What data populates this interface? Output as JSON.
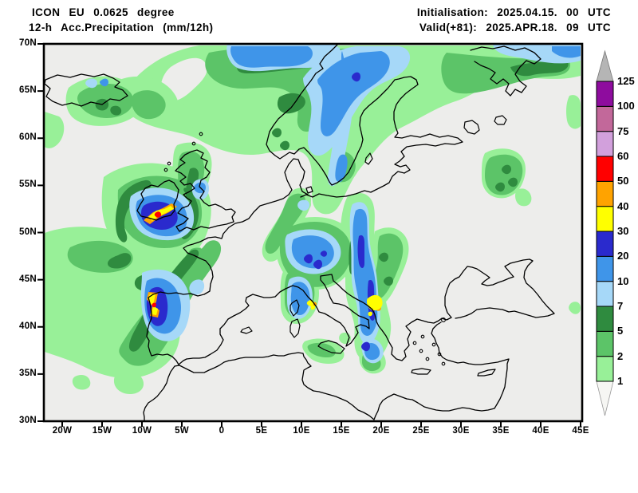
{
  "header": {
    "title_line1": "ICON EU 0.0625 degree",
    "title_line2": "12-h Acc.Precipitation (mm/12h)",
    "init_line": "Initialisation: 2025.04.15. 00 UTC",
    "valid_line": "Valid(+81): 2025.APR.18. 09 UTC"
  },
  "map": {
    "lat_labels": [
      "70N",
      "65N",
      "60N",
      "55N",
      "50N",
      "45N",
      "40N",
      "35N",
      "30N"
    ],
    "lon_labels": [
      "20W",
      "15W",
      "10W",
      "5W",
      "0",
      "5E",
      "10E",
      "15E",
      "20E",
      "25E",
      "30E",
      "35E",
      "40E",
      "45E"
    ],
    "background": "#ededeb",
    "coast_color": "#000000"
  },
  "colorbar": {
    "levels_bottom_to_top": [
      "1",
      "2",
      "5",
      "7",
      "10",
      "20",
      "30",
      "40",
      "50",
      "60",
      "75",
      "100",
      "125"
    ],
    "block_colors_bottom_to_top": [
      "#98F098",
      "#5CC468",
      "#2F8B3F",
      "#A6D8F8",
      "#3F95E9",
      "#2A2ACD",
      "#FFFF00",
      "#FFA300",
      "#FF0000",
      "#D2A0DC",
      "#C2689A",
      "#8E0C9E"
    ],
    "over_color": "#B5B5B5",
    "under_color": "#F6F6F3"
  },
  "palette": {
    "light_green": "#98F098",
    "med_green": "#5CC468",
    "dark_green": "#2F8B3F",
    "pale_blue": "#A6D8F8",
    "med_blue": "#3F95E9",
    "dark_blue": "#2A2ACD",
    "yellow": "#FFFF00",
    "orange": "#FFA300",
    "red": "#FF0000",
    "map_bg": "#ededeb",
    "frame": "#000000"
  }
}
